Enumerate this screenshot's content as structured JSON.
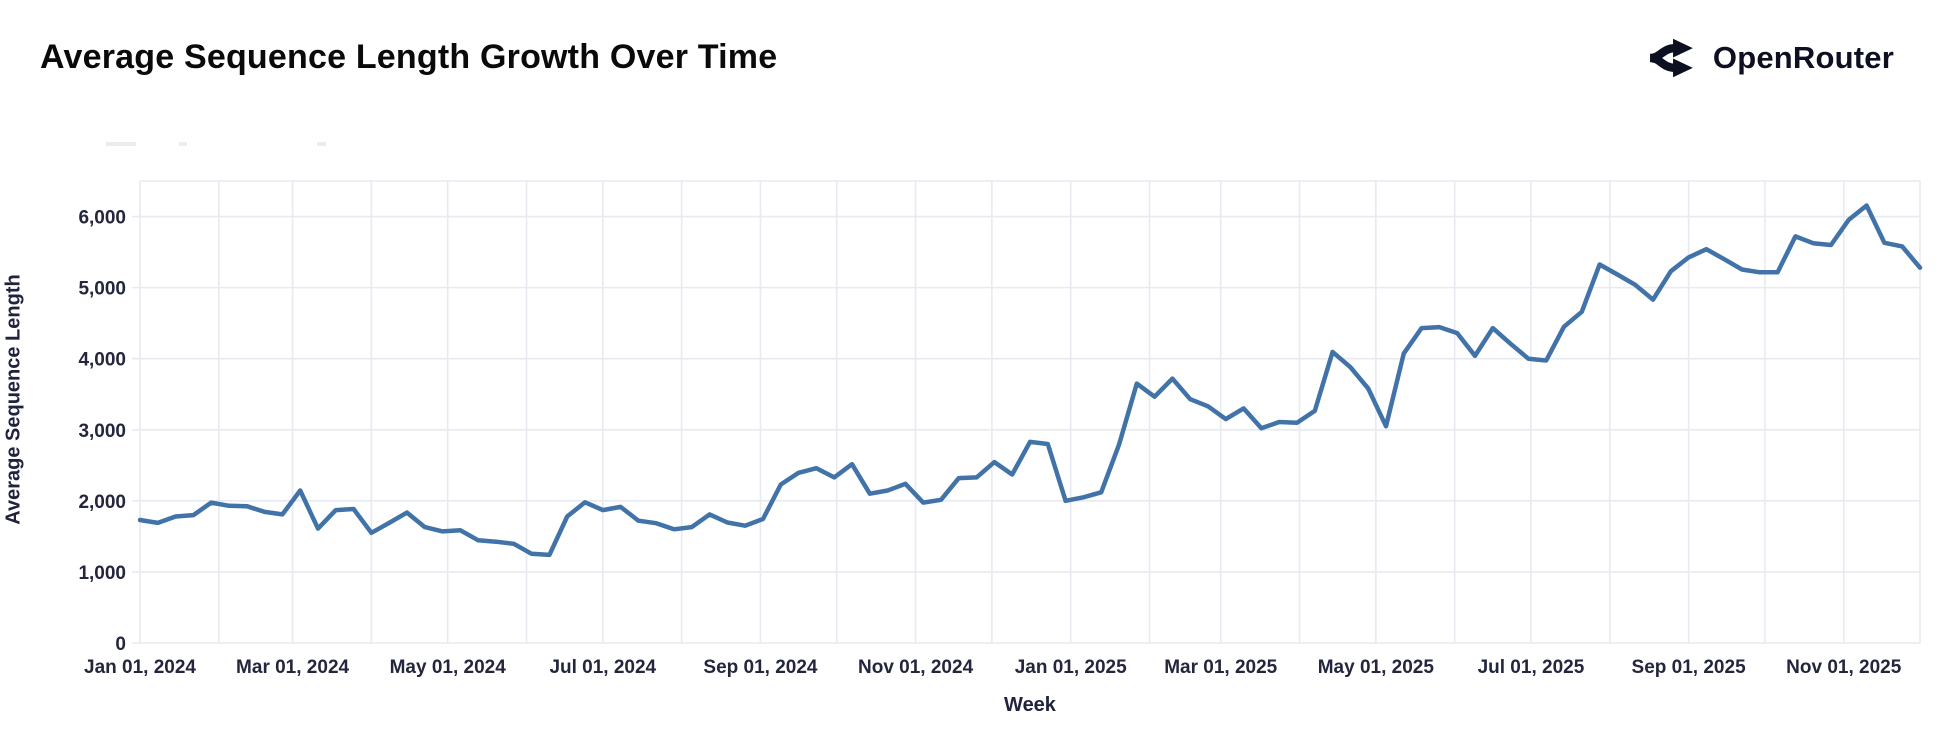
{
  "header": {
    "title": "Average Sequence Length Growth Over Time",
    "brand": "OpenRouter"
  },
  "chart_data": {
    "type": "line",
    "title": "Average Sequence Length Growth Over Time",
    "xlabel": "Week",
    "ylabel": "Average Sequence Length",
    "legend_position": "none",
    "grid": true,
    "line_color": "#4173a9",
    "grid_color": "#e8eaf2",
    "label_color": "#23263d",
    "ylim": [
      0,
      6500
    ],
    "y_ticks": [
      0,
      1000,
      2000,
      3000,
      4000,
      5000,
      6000
    ],
    "x_start_label": "Jan 01, 2024",
    "x_end_label": "Dec 01, 2025",
    "x_total_days": 700,
    "month_gridline_days": [
      0,
      31,
      60,
      91,
      121,
      152,
      182,
      213,
      244,
      274,
      305,
      335,
      366,
      397,
      425,
      456,
      486,
      517,
      547,
      578,
      609,
      639,
      670,
      700
    ],
    "x_tick_labels": [
      {
        "label": "Jan 01, 2024",
        "day": 0
      },
      {
        "label": "Mar 01, 2024",
        "day": 60
      },
      {
        "label": "May 01, 2024",
        "day": 121
      },
      {
        "label": "Jul 01, 2024",
        "day": 182
      },
      {
        "label": "Sep 01, 2024",
        "day": 244
      },
      {
        "label": "Nov 01, 2024",
        "day": 305
      },
      {
        "label": "Jan 01, 2025",
        "day": 366
      },
      {
        "label": "Mar 01, 2025",
        "day": 425
      },
      {
        "label": "May 01, 2025",
        "day": 486
      },
      {
        "label": "Jul 01, 2025",
        "day": 547
      },
      {
        "label": "Sep 01, 2025",
        "day": 609
      },
      {
        "label": "Nov 01, 2025",
        "day": 670
      }
    ],
    "series": [
      {
        "name": "avg_sequence_length",
        "week_interval_days": 7,
        "values": [
          1730,
          1690,
          1780,
          1800,
          1975,
          1930,
          1925,
          1845,
          1810,
          2145,
          1610,
          1870,
          1885,
          1550,
          1690,
          1835,
          1630,
          1570,
          1585,
          1445,
          1425,
          1395,
          1255,
          1240,
          1780,
          1980,
          1870,
          1915,
          1720,
          1685,
          1600,
          1630,
          1810,
          1695,
          1650,
          1745,
          2230,
          2395,
          2460,
          2330,
          2515,
          2100,
          2145,
          2240,
          1975,
          2015,
          2320,
          2330,
          2545,
          2370,
          2830,
          2800,
          2000,
          2050,
          2120,
          2790,
          3650,
          3465,
          3720,
          3430,
          3330,
          3150,
          3300,
          3020,
          3110,
          3100,
          3265,
          4095,
          3880,
          3580,
          3050,
          4075,
          4430,
          4445,
          4360,
          4040,
          4430,
          4210,
          4000,
          3975,
          4450,
          4660,
          5325,
          5185,
          5040,
          4830,
          5230,
          5425,
          5540,
          5400,
          5255,
          5215,
          5215,
          5720,
          5625,
          5600,
          5955,
          6155,
          5630,
          5580,
          5280
        ]
      }
    ]
  }
}
